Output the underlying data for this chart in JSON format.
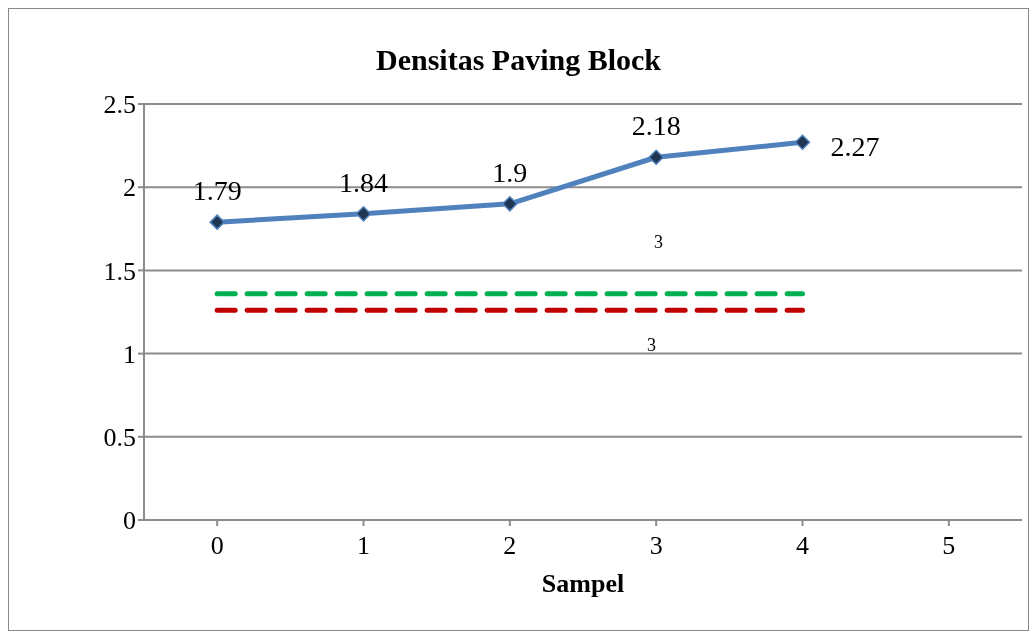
{
  "chart_data": {
    "type": "line",
    "title": "Densitas Paving Block",
    "xlabel": "Sampel",
    "categories": [
      "0",
      "1",
      "2",
      "3",
      "4",
      "5"
    ],
    "series": [
      {
        "color": "#4f81bd",
        "values": [
          1.79,
          1.84,
          1.9,
          2.18,
          2.27,
          null
        ],
        "marker": "diamond",
        "line_style": "solid",
        "value_labels": [
          "1.79",
          "1.84",
          "1.9",
          "2.18",
          "2.27",
          null
        ]
      },
      {
        "color": "#00b050",
        "values": [
          1.36,
          1.36,
          1.36,
          1.36,
          1.36,
          null
        ],
        "marker": "none",
        "line_style": "dashed"
      },
      {
        "color": "#c00000",
        "values": [
          1.26,
          1.26,
          1.26,
          1.26,
          1.26,
          null
        ],
        "marker": "none",
        "line_style": "dashed"
      }
    ],
    "ylim": [
      0,
      2.5
    ],
    "yticks": [
      0,
      0.5,
      1,
      1.5,
      2,
      2.5
    ],
    "grid": "y",
    "annotations": [
      "3",
      "3"
    ]
  }
}
